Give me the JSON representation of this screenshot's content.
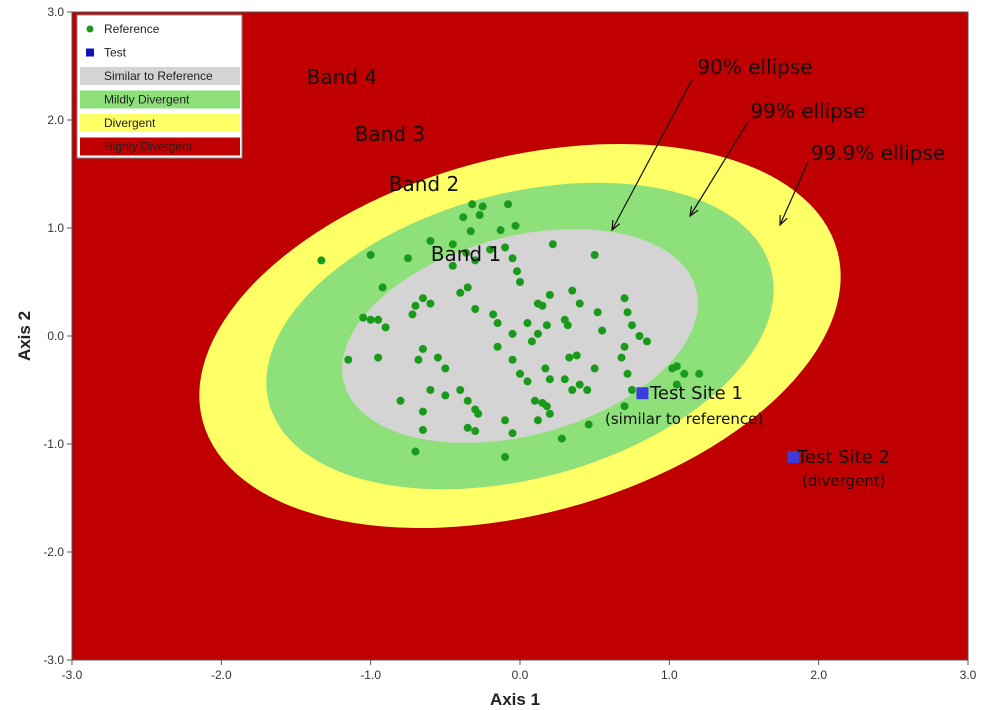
{
  "chart_data": {
    "type": "scatter",
    "xlabel": "Axis 1",
    "ylabel": "Axis 2",
    "xlim": [
      -3.0,
      3.0
    ],
    "ylim": [
      -3.0,
      3.0
    ],
    "xticks": [
      "-3.0",
      "-2.0",
      "-1.0",
      "0.0",
      "1.0",
      "2.0",
      "3.0"
    ],
    "yticks": [
      "-3.0",
      "-2.0",
      "-1.0",
      "0.0",
      "1.0",
      "2.0",
      "3.0"
    ],
    "legend_position": "top-left",
    "legend": [
      {
        "label": "Reference",
        "color": "#1a9a1a",
        "marker": "dot"
      },
      {
        "label": "Test",
        "color": "#1414b4",
        "marker": "square"
      },
      {
        "label": "Similar to Reference",
        "color": "#d4d4d4",
        "marker": "swatch"
      },
      {
        "label": "Mildly Divergent",
        "color": "#8ee07a",
        "marker": "swatch"
      },
      {
        "label": "Divergent",
        "color": "#ffff66",
        "marker": "swatch"
      },
      {
        "label": "Highly Divergent",
        "color": "#c00000",
        "marker": "swatch"
      }
    ],
    "background_color": "#c00000",
    "ellipses": [
      {
        "name": "99.9% ellipse",
        "color": "#ffff66",
        "center": [
          0.0,
          0.0
        ],
        "rx": 2.2,
        "ry": 1.65,
        "rotation_deg": -15
      },
      {
        "name": "99% ellipse",
        "color": "#8ee07a",
        "center": [
          0.0,
          0.0
        ],
        "rx": 1.74,
        "ry": 1.32,
        "rotation_deg": -15
      },
      {
        "name": "90% ellipse",
        "color": "#d4d4d4",
        "center": [
          0.0,
          0.0
        ],
        "rx": 1.22,
        "ry": 0.92,
        "rotation_deg": -15
      }
    ],
    "band_labels": [
      "Band 1",
      "Band 2",
      "Band 3",
      "Band 4"
    ],
    "ellipse_labels": [
      "90% ellipse",
      "99% ellipse",
      "99.9% ellipse"
    ],
    "series": [
      {
        "name": "Reference",
        "color": "#1a9a1a",
        "points": [
          [
            -1.33,
            0.7
          ],
          [
            -1.0,
            0.75
          ],
          [
            -0.92,
            0.45
          ],
          [
            -1.0,
            0.15
          ],
          [
            -0.95,
            0.15
          ],
          [
            -1.05,
            0.17
          ],
          [
            -0.9,
            0.08
          ],
          [
            -0.95,
            -0.2
          ],
          [
            -1.15,
            -0.22
          ],
          [
            -0.75,
            0.72
          ],
          [
            -0.65,
            0.35
          ],
          [
            -0.7,
            0.28
          ],
          [
            -0.72,
            0.2
          ],
          [
            -0.6,
            0.88
          ],
          [
            -0.6,
            0.3
          ],
          [
            -0.45,
            0.85
          ],
          [
            -0.38,
            1.1
          ],
          [
            -0.32,
            1.22
          ],
          [
            -0.27,
            1.12
          ],
          [
            -0.25,
            1.2
          ],
          [
            -0.13,
            0.98
          ],
          [
            -0.08,
            1.22
          ],
          [
            -0.03,
            1.02
          ],
          [
            -0.33,
            0.97
          ],
          [
            -0.36,
            0.77
          ],
          [
            -0.3,
            0.7
          ],
          [
            -0.2,
            0.8
          ],
          [
            -0.1,
            0.82
          ],
          [
            -0.05,
            0.72
          ],
          [
            -0.02,
            0.6
          ],
          [
            0.0,
            0.5
          ],
          [
            -0.45,
            0.65
          ],
          [
            -0.4,
            0.4
          ],
          [
            -0.35,
            0.45
          ],
          [
            -0.3,
            0.25
          ],
          [
            -0.15,
            0.12
          ],
          [
            -0.18,
            0.2
          ],
          [
            -0.05,
            0.02
          ],
          [
            0.05,
            0.12
          ],
          [
            0.12,
            0.3
          ],
          [
            0.15,
            0.28
          ],
          [
            0.18,
            0.1
          ],
          [
            0.2,
            0.38
          ],
          [
            0.08,
            -0.05
          ],
          [
            0.12,
            0.02
          ],
          [
            0.22,
            0.85
          ],
          [
            0.35,
            0.42
          ],
          [
            0.4,
            0.3
          ],
          [
            0.3,
            0.15
          ],
          [
            0.32,
            0.1
          ],
          [
            0.5,
            0.75
          ],
          [
            0.52,
            0.22
          ],
          [
            0.55,
            0.05
          ],
          [
            0.7,
            0.35
          ],
          [
            0.72,
            0.22
          ],
          [
            0.75,
            0.1
          ],
          [
            0.8,
            0.0
          ],
          [
            0.85,
            -0.05
          ],
          [
            0.7,
            -0.1
          ],
          [
            0.68,
            -0.2
          ],
          [
            0.72,
            -0.35
          ],
          [
            0.75,
            -0.5
          ],
          [
            0.7,
            -0.65
          ],
          [
            1.02,
            -0.3
          ],
          [
            1.05,
            -0.28
          ],
          [
            1.1,
            -0.35
          ],
          [
            1.05,
            -0.45
          ],
          [
            1.2,
            -0.35
          ],
          [
            -0.65,
            -0.12
          ],
          [
            -0.68,
            -0.22
          ],
          [
            -0.55,
            -0.2
          ],
          [
            -0.5,
            -0.3
          ],
          [
            -0.4,
            -0.5
          ],
          [
            -0.35,
            -0.6
          ],
          [
            -0.3,
            -0.68
          ],
          [
            -0.28,
            -0.72
          ],
          [
            -0.5,
            -0.55
          ],
          [
            -0.6,
            -0.5
          ],
          [
            -0.8,
            -0.6
          ],
          [
            -0.65,
            -0.7
          ],
          [
            -0.65,
            -0.87
          ],
          [
            -0.7,
            -1.07
          ],
          [
            -0.3,
            -0.88
          ],
          [
            -0.35,
            -0.85
          ],
          [
            -0.1,
            -0.78
          ],
          [
            -0.1,
            -1.12
          ],
          [
            -0.05,
            -0.9
          ],
          [
            0.15,
            -0.62
          ],
          [
            0.18,
            -0.65
          ],
          [
            0.12,
            -0.78
          ],
          [
            0.2,
            -0.72
          ],
          [
            0.1,
            -0.6
          ],
          [
            0.28,
            -0.95
          ],
          [
            0.35,
            -0.5
          ],
          [
            0.4,
            -0.45
          ],
          [
            0.45,
            -0.5
          ],
          [
            0.3,
            -0.4
          ],
          [
            0.33,
            -0.2
          ],
          [
            0.38,
            -0.18
          ],
          [
            0.5,
            -0.3
          ],
          [
            0.46,
            -0.82
          ],
          [
            0.2,
            -0.4
          ],
          [
            0.0,
            -0.35
          ],
          [
            -0.05,
            -0.22
          ],
          [
            -0.15,
            -0.1
          ],
          [
            0.05,
            -0.42
          ],
          [
            0.17,
            -0.3
          ]
        ]
      },
      {
        "name": "Test",
        "color": "#3c3cdc",
        "points": [
          [
            0.82,
            -0.53
          ],
          [
            1.83,
            -1.12
          ]
        ]
      }
    ],
    "annotations": [
      {
        "text": "Test Site 1",
        "subtext": "(similar to reference)"
      },
      {
        "text": "Test Site 2",
        "subtext": "(divergent)"
      }
    ]
  }
}
